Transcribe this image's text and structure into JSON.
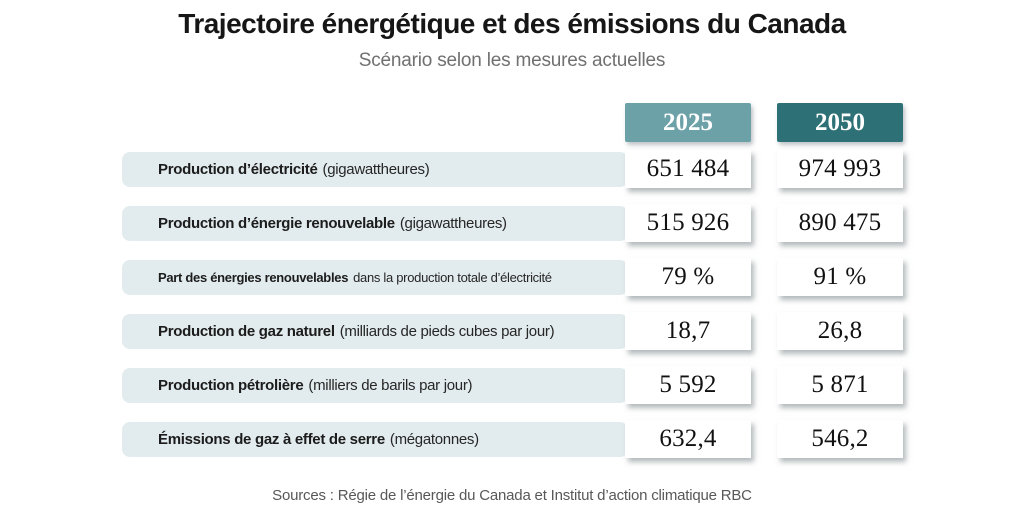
{
  "title": "Trajectoire énergétique et des émissions du Canada",
  "subtitle": "Scénario selon les mesures actuelles",
  "columns": [
    {
      "label": "2025",
      "color": "#6ba1a7"
    },
    {
      "label": "2050",
      "color": "#2d7176"
    }
  ],
  "table": {
    "rows": [
      {
        "metric": "Production d’électricité",
        "unit": "(gigawattheures)",
        "values": [
          "651 484",
          "974 993"
        ]
      },
      {
        "metric": "Production d’énergie renouvelable",
        "unit": "(gigawattheures)",
        "values": [
          "515 926",
          "890 475"
        ]
      },
      {
        "metric": "Part des énergies renouvelables",
        "unit": "dans la production totale d’électricité",
        "values": [
          "79 %",
          "91 %"
        ]
      },
      {
        "metric": "Production de gaz naturel",
        "unit": "(milliards de pieds cubes par jour)",
        "values": [
          "18,7",
          "26,8"
        ]
      },
      {
        "metric": "Production pétrolière",
        "unit": "(milliers de barils par jour)",
        "values": [
          "5 592",
          "5 871"
        ]
      },
      {
        "metric": "Émissions de gaz à effet de serre",
        "unit": "(mégatonnes)",
        "values": [
          "632,4",
          "546,2"
        ]
      }
    ]
  },
  "source": "Sources : Régie de l’énergie du Canada et Institut d’action climatique RBC",
  "colors": {
    "header_2025": "#6ba1a7",
    "header_2050": "#2d7176",
    "row_background": "#e2ebed",
    "value_box": "#ffffff",
    "title_text": "#161616",
    "subtitle_text": "#707070",
    "source_text": "#585858"
  },
  "chart_data": {
    "type": "table",
    "title": "Trajectoire énergétique et des émissions du Canada",
    "subtitle": "Scénario selon les mesures actuelles",
    "columns": [
      "2025",
      "2050"
    ],
    "rows": [
      {
        "label": "Production d’électricité",
        "unit": "gigawattheures",
        "values": [
          651484,
          974993
        ]
      },
      {
        "label": "Production d’énergie renouvelable",
        "unit": "gigawattheures",
        "values": [
          515926,
          890475
        ]
      },
      {
        "label": "Part des énergies renouvelables dans la production totale d’électricité",
        "unit": "%",
        "values": [
          79,
          91
        ]
      },
      {
        "label": "Production de gaz naturel",
        "unit": "milliards de pieds cubes par jour",
        "values": [
          18.7,
          26.8
        ]
      },
      {
        "label": "Production pétrolière",
        "unit": "milliers de barils par jour",
        "values": [
          5592,
          5871
        ]
      },
      {
        "label": "Émissions de gaz à effet de serre",
        "unit": "mégatonnes",
        "values": [
          632.4,
          546.2
        ]
      }
    ],
    "source": "Sources : Régie de l’énergie du Canada et Institut d’action climatique RBC"
  }
}
